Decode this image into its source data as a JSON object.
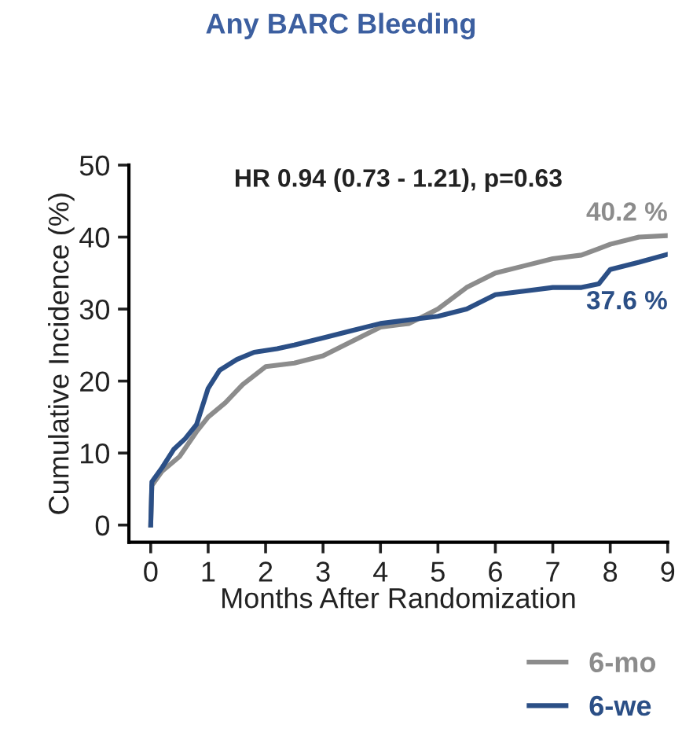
{
  "chart_data": {
    "type": "line",
    "title": "Any BARC Bleeding",
    "xlabel": "Months After Randomization",
    "ylabel": "Cumulative Incidence (%)",
    "xlim": [
      -0.38,
      9
    ],
    "xticks": [
      0,
      1,
      2,
      3,
      4,
      5,
      6,
      7,
      8,
      9
    ],
    "ylim": [
      -2.4,
      50
    ],
    "yticks": [
      0,
      10,
      20,
      30,
      40,
      50
    ],
    "grid": false,
    "legend": "bottom right",
    "series": [
      {
        "name": "6-mo",
        "color": "#8c8c8c",
        "x": [
          0,
          0.02,
          0.2,
          0.5,
          0.8,
          1,
          1.3,
          1.6,
          2,
          2.5,
          3,
          3.5,
          4,
          4.5,
          5,
          5.5,
          6,
          6.5,
          7,
          7.5,
          8,
          8.5,
          9
        ],
        "values": [
          0,
          5.5,
          7.5,
          9.5,
          13,
          15,
          17,
          19.5,
          22,
          22.5,
          23.5,
          25.5,
          27.5,
          28,
          30,
          33,
          35,
          36,
          37,
          37.5,
          39,
          40,
          40.2
        ]
      },
      {
        "name": "6-we",
        "color": "#2b4f86",
        "x": [
          0,
          0.02,
          0.2,
          0.4,
          0.6,
          0.8,
          1,
          1.2,
          1.5,
          1.8,
          2.2,
          2.5,
          3,
          3.5,
          4,
          4.5,
          5,
          5.5,
          6,
          6.5,
          7,
          7.5,
          7.8,
          8,
          8.5,
          9
        ],
        "values": [
          0,
          6,
          8,
          10.5,
          12,
          14,
          19,
          21.5,
          23,
          24,
          24.5,
          25,
          26,
          27,
          28,
          28.5,
          29,
          30,
          32,
          32.5,
          33,
          33,
          33.5,
          35.5,
          36.5,
          37.6
        ]
      }
    ],
    "annotations": [
      "HR 0.94 (0.73 - 1.21), p=0.63",
      {
        "text": "40.2 %",
        "x": 9,
        "y": 40.2
      },
      {
        "text": "37.6 %",
        "x": 9,
        "y": 37.6
      }
    ]
  }
}
